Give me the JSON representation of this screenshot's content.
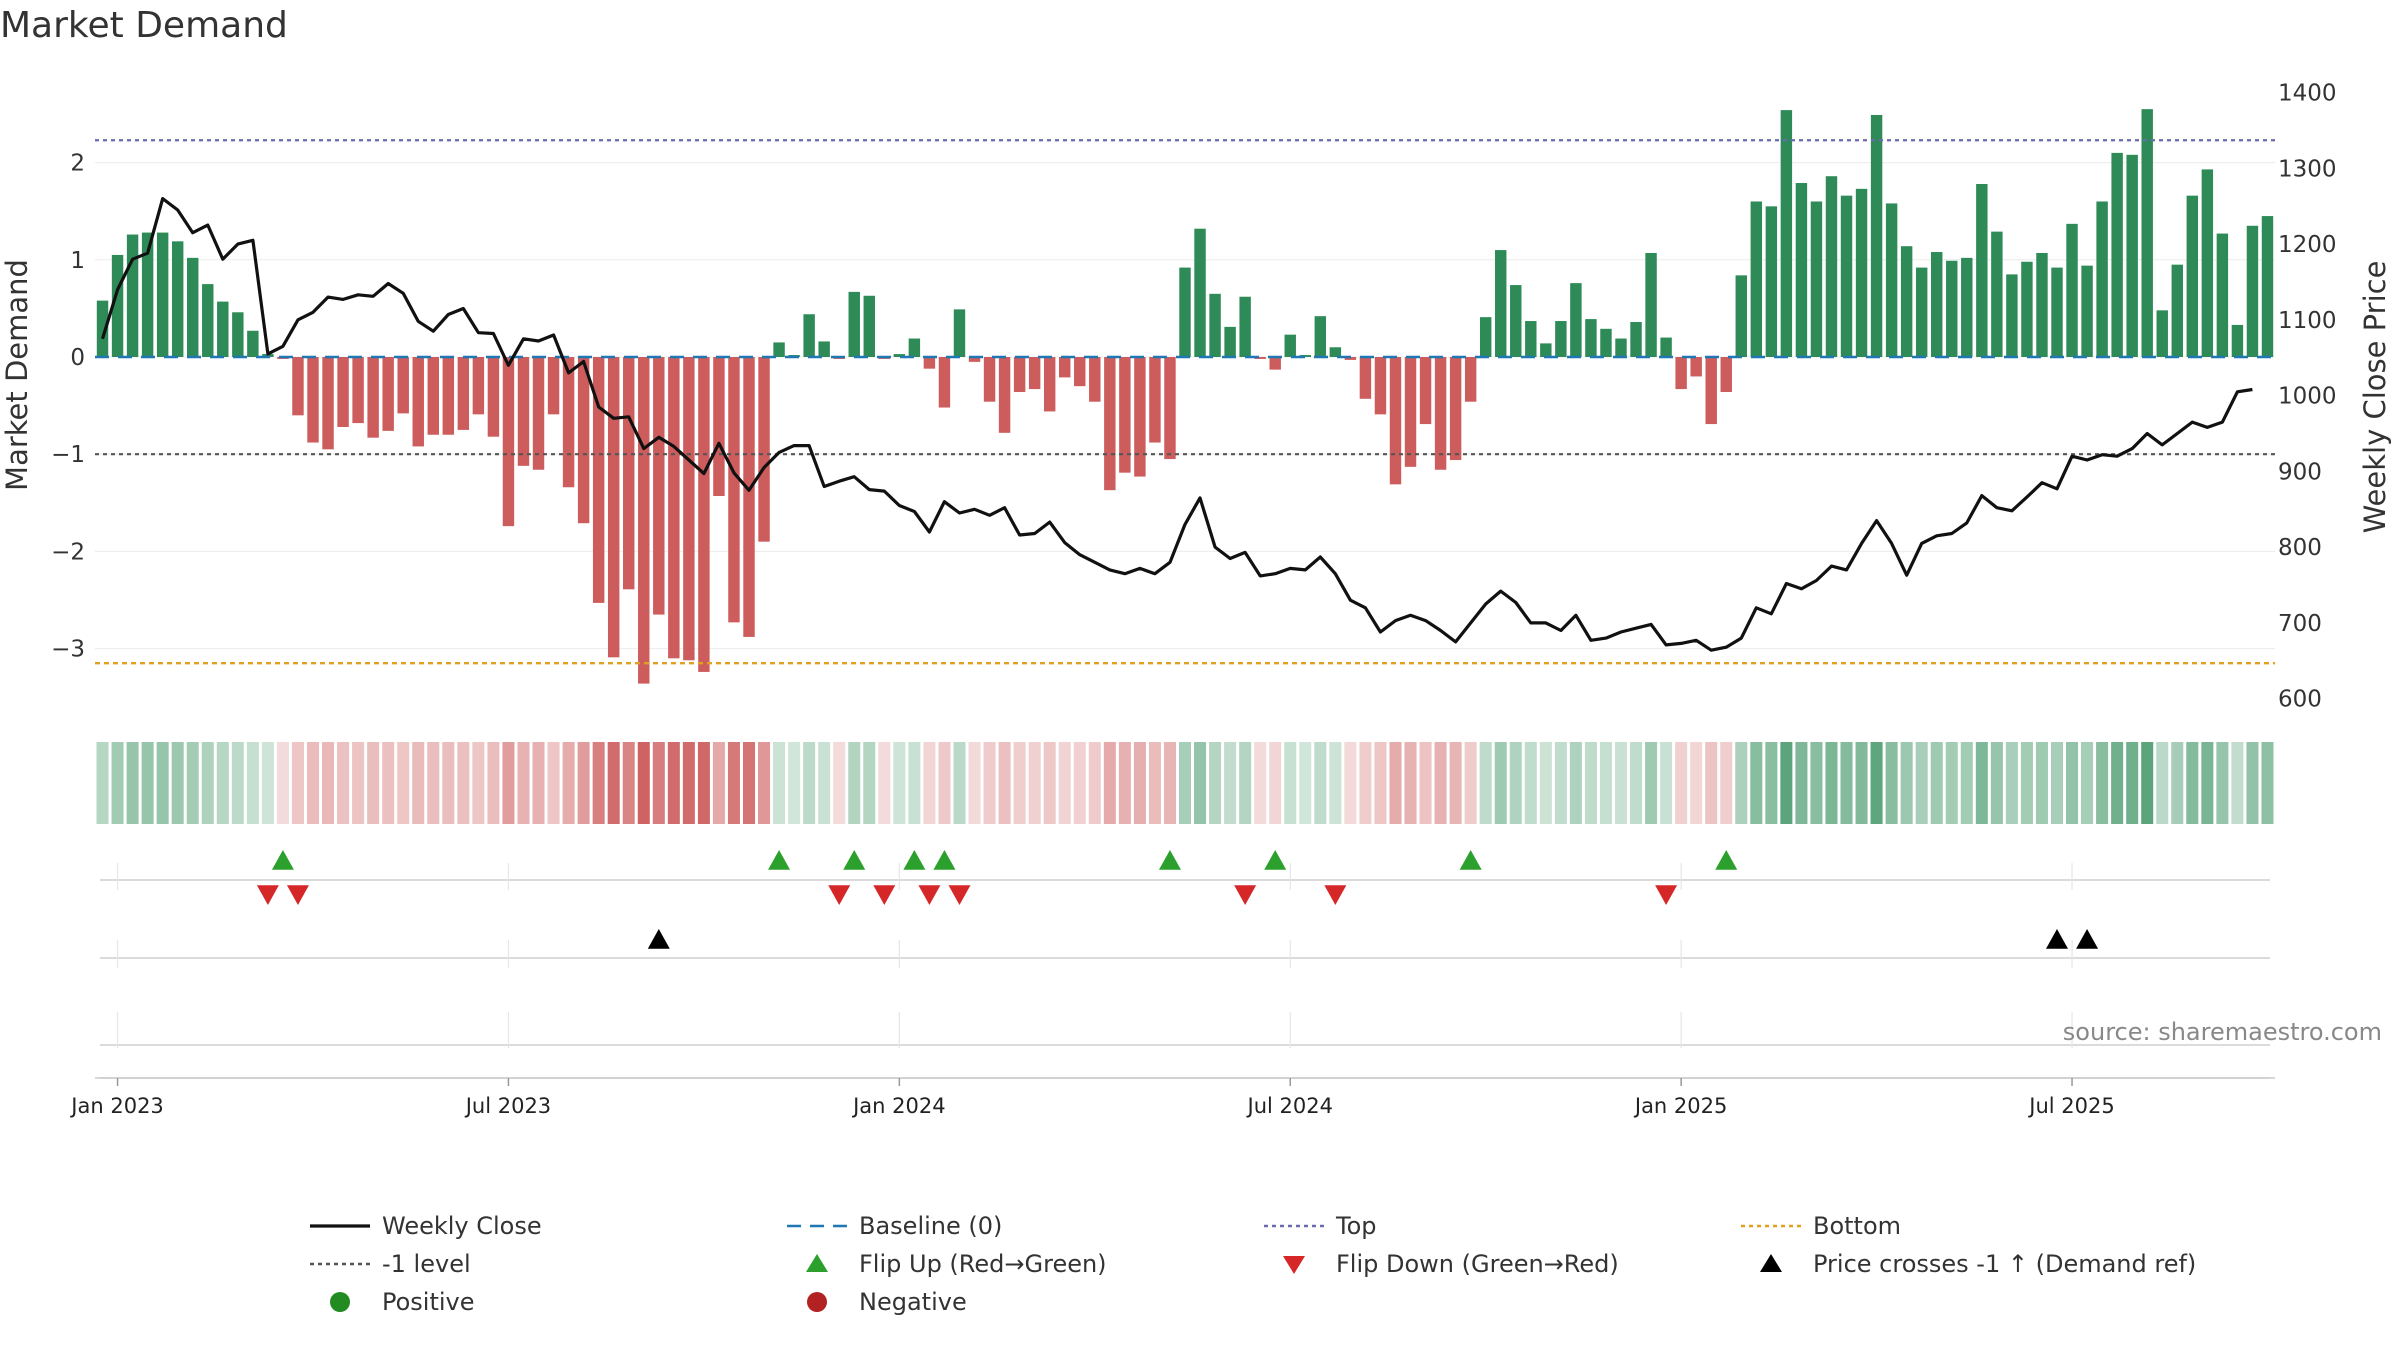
{
  "chart_data": {
    "type": "bar",
    "title": "Market Demand",
    "ylabel": "Market Demand",
    "y2label": "Weekly Close Price",
    "ylim": [
      -3.7,
      2.85
    ],
    "y2lim": [
      576,
      1410
    ],
    "y_ticks": [
      2,
      1,
      0,
      -1,
      -2,
      -3
    ],
    "y_tick_labels": [
      "2",
      "1",
      "0",
      "−1",
      "−2",
      "−3"
    ],
    "y2_ticks": [
      1400,
      1300,
      1200,
      1100,
      1000,
      900,
      800,
      700,
      600
    ],
    "x_tick_labels": [
      "Jan 2023",
      "Jul 2023",
      "Jan 2024",
      "Jul 2024",
      "Jan 2025",
      "Jul 2025"
    ],
    "x_tick_weeks": [
      1,
      27,
      53,
      79,
      105,
      131
    ],
    "reference_lines": {
      "top": 2.23,
      "bottom": -3.15,
      "level_minus1": -1,
      "baseline": 0
    },
    "colors": {
      "positive": "#2e8b57",
      "negative": "#cd5c5c",
      "weekly_close": "#111111",
      "baseline": "#1f77b4",
      "top": "#6a6ab0",
      "bottom": "#e0a020",
      "level": "#555555",
      "flip_up": "#2ca02c",
      "flip_down": "#d62728",
      "cross": "#000000"
    },
    "demand": [
      0.58,
      1.05,
      1.26,
      1.28,
      1.28,
      1.19,
      1.02,
      0.75,
      0.57,
      0.46,
      0.27,
      0.03,
      -0.02,
      -0.6,
      -0.88,
      -0.95,
      -0.72,
      -0.68,
      -0.83,
      -0.76,
      -0.58,
      -0.92,
      -0.8,
      -0.8,
      -0.75,
      -0.59,
      -0.82,
      -1.74,
      -1.12,
      -1.16,
      -0.59,
      -1.34,
      -1.71,
      -2.53,
      -3.09,
      -2.39,
      -3.36,
      -2.65,
      -3.1,
      -3.12,
      -3.24,
      -1.43,
      -2.73,
      -2.88,
      -1.9,
      0.15,
      0.02,
      0.44,
      0.16,
      -0.02,
      0.67,
      0.63,
      -0.02,
      0.03,
      0.19,
      -0.12,
      -0.52,
      0.49,
      -0.05,
      -0.46,
      -0.78,
      -0.36,
      -0.33,
      -0.56,
      -0.21,
      -0.3,
      -0.46,
      -1.37,
      -1.19,
      -1.23,
      -0.88,
      -1.05,
      0.92,
      1.32,
      0.65,
      0.31,
      0.62,
      -0.02,
      -0.13,
      0.23,
      0.02,
      0.42,
      0.1,
      -0.03,
      -0.43,
      -0.59,
      -1.31,
      -1.13,
      -0.69,
      -1.16,
      -1.06,
      -0.46,
      0.41,
      1.1,
      0.74,
      0.37,
      0.14,
      0.37,
      0.76,
      0.39,
      0.29,
      0.19,
      0.36,
      1.07,
      0.2,
      -0.33,
      -0.2,
      -0.69,
      -0.36,
      0.84,
      1.6,
      1.55,
      2.54,
      1.79,
      1.6,
      1.86,
      1.66,
      1.73,
      2.49,
      1.58,
      1.14,
      0.92,
      1.08,
      0.99,
      1.02,
      1.78,
      1.29,
      0.85,
      0.98,
      1.07,
      0.92,
      1.37,
      0.94,
      1.6,
      2.1,
      2.08,
      2.55,
      0.48,
      0.95,
      1.66,
      1.93,
      1.27,
      0.33,
      1.35,
      1.45
    ],
    "weekly_close": [
      1075,
      1140,
      1180,
      1188,
      1260,
      1245,
      1215,
      1225,
      1180,
      1200,
      1205,
      1055,
      1065,
      1100,
      1110,
      1130,
      1127,
      1133,
      1131,
      1148,
      1135,
      1098,
      1085,
      1107,
      1115,
      1083,
      1082,
      1040,
      1075,
      1072,
      1080,
      1030,
      1045,
      985,
      970,
      972,
      930,
      945,
      933,
      915,
      897,
      937,
      898,
      875,
      905,
      925,
      934,
      934,
      880,
      887,
      893,
      876,
      874,
      855,
      847,
      820,
      860,
      845,
      850,
      842,
      852,
      816,
      818,
      833,
      806,
      790,
      780,
      770,
      765,
      772,
      765,
      780,
      830,
      865,
      800,
      785,
      793,
      762,
      765,
      772,
      770,
      787,
      765,
      730,
      720,
      688,
      703,
      710,
      703,
      690,
      675,
      700,
      725,
      742,
      727,
      700,
      700,
      690,
      710,
      677,
      680,
      688,
      693,
      698,
      671,
      673,
      677,
      664,
      668,
      680,
      720,
      712,
      752,
      745,
      756,
      775,
      770,
      805,
      835,
      805,
      763,
      805,
      815,
      818,
      832,
      868,
      852,
      848,
      866,
      885,
      877,
      920,
      915,
      922,
      920,
      930,
      950,
      935,
      950,
      965,
      958,
      965,
      1005,
      1008
    ],
    "flip_up_weeks": [
      12,
      45,
      50,
      54,
      56,
      71,
      78,
      91,
      108
    ],
    "flip_down_weeks": [
      11,
      13,
      49,
      52,
      55,
      57,
      76,
      82,
      104
    ],
    "price_cross_weeks": [
      37,
      130,
      132
    ],
    "source_text": "source: sharemaestro.com"
  },
  "legend": [
    {
      "label": "Weekly Close",
      "marker": "solid-line",
      "color": "#111111"
    },
    {
      "label": "Baseline (0)",
      "marker": "dashed-line",
      "color": "#1f77b4"
    },
    {
      "label": "Top",
      "marker": "dotted-line",
      "color": "#6a6ab0"
    },
    {
      "label": "Bottom",
      "marker": "dotted-line",
      "color": "#e0a020"
    },
    {
      "label": "-1 level",
      "marker": "dotted-line",
      "color": "#555555"
    },
    {
      "label": "Flip Up (Red→Green)",
      "marker": "triangle-up",
      "color": "#2ca02c"
    },
    {
      "label": "Flip Down (Green→Red)",
      "marker": "triangle-down",
      "color": "#d62728"
    },
    {
      "label": "Price crosses -1 ↑ (Demand ref)",
      "marker": "triangle-up",
      "color": "#000000"
    },
    {
      "label": "Positive",
      "marker": "circle",
      "color": "#228b22"
    },
    {
      "label": "Negative",
      "marker": "circle",
      "color": "#b22222"
    }
  ]
}
